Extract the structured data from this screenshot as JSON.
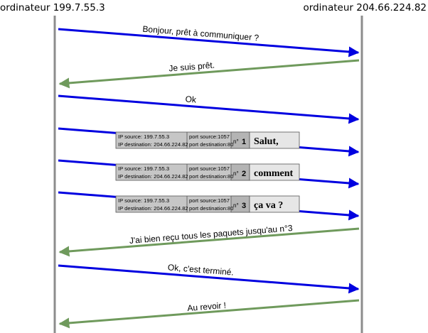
{
  "hosts": {
    "left": "ordinateur 199.7.55.3",
    "right": "ordinateur 204.66.224.82"
  },
  "colors": {
    "to_right": "#0000e0",
    "to_left": "#6f9a5c",
    "lifeline": "#8c8c8c",
    "packet_fields_bg": "#c6c6c6",
    "packet_number_bg": "#b4b4b4",
    "packet_payload_bg": "#e6e6e6"
  },
  "messages": [
    {
      "direction": "to_right",
      "label": "Bonjour, prêt à communiquer ?"
    },
    {
      "direction": "to_left",
      "label": "Je suis prêt."
    },
    {
      "direction": "to_right",
      "label": "Ok"
    },
    {
      "direction": "to_right",
      "label": ""
    },
    {
      "direction": "to_right",
      "label": ""
    },
    {
      "direction": "to_right",
      "label": ""
    },
    {
      "direction": "to_left",
      "label": "J'ai bien reçu tous les paquets jusqu'au n°3"
    },
    {
      "direction": "to_right",
      "label": "Ok, c'est terminé."
    },
    {
      "direction": "to_left",
      "label": "Au revoir !"
    }
  ],
  "packets": [
    {
      "ip_source": "IP source: 199.7.55.3",
      "ip_destination": "IP destination: 204.66.224.82",
      "port_source": "port source:1057",
      "port_destination": "port destination:80",
      "number_prefix": "n°",
      "number": "1",
      "payload": "Salut,"
    },
    {
      "ip_source": "IP source: 199.7.55.3",
      "ip_destination": "IP destination: 204.66.224.82",
      "port_source": "port source:1057",
      "port_destination": "port destination:80",
      "number_prefix": "n°",
      "number": "2",
      "payload": "comment"
    },
    {
      "ip_source": "IP source: 199.7.55.3",
      "ip_destination": "IP destination: 204.66.224.82",
      "port_source": "port source:1057",
      "port_destination": "port destination:80",
      "number_prefix": "n°",
      "number": "3",
      "payload": "ça va ?"
    }
  ]
}
